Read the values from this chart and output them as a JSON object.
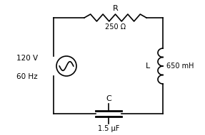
{
  "bg_color": "#ffffff",
  "voltage": "120 V",
  "frequency": "60 Hz",
  "R_label": "R",
  "R_value": "250 Ω",
  "L_label": "L",
  "L_value": "650 mH",
  "C_label": "C",
  "C_value": "1.5 μF",
  "line_color": "#000000",
  "lw": 1.2
}
